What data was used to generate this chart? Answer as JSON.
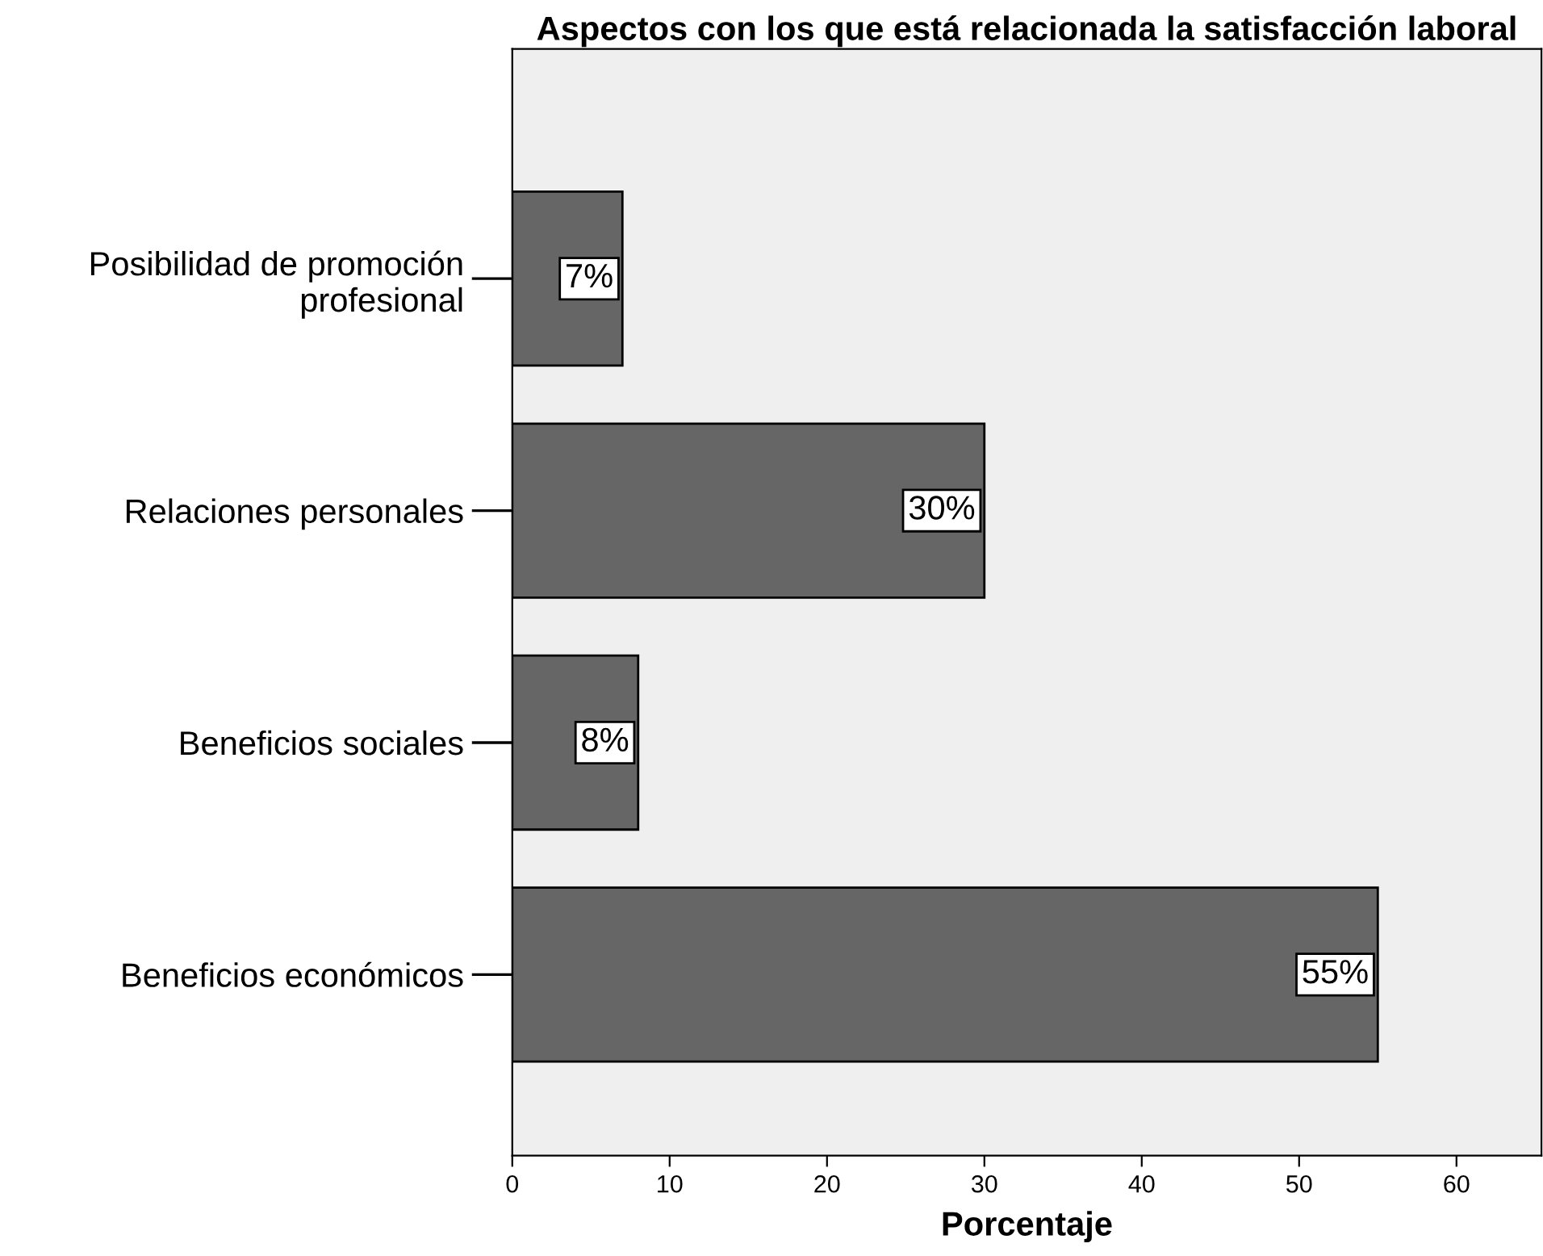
{
  "chart_data": {
    "type": "bar",
    "orientation": "horizontal",
    "title": "Aspectos con los que está relacionada la satisfacción laboral",
    "xlabel": "Porcentaje",
    "categories": [
      "Posibilidad de promoción\nprofesional",
      "Relaciones personales",
      "Beneficios sociales",
      "Beneficios económicos"
    ],
    "values": [
      7,
      30,
      8,
      55
    ],
    "value_labels": [
      "7%",
      "30%",
      "8%",
      "55%"
    ],
    "color": "#666666",
    "xlim": [
      0,
      65.4
    ],
    "xticks": [
      0,
      10,
      20,
      30,
      40,
      50,
      60
    ],
    "grid": false,
    "legend": false
  }
}
